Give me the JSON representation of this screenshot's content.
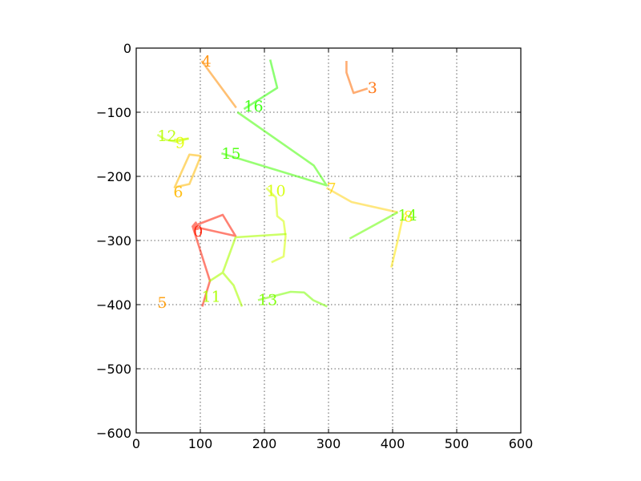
{
  "chart_data": {
    "type": "line",
    "title": "",
    "xlabel": "",
    "ylabel": "",
    "xlim": [
      0,
      600
    ],
    "ylim": [
      -600,
      0
    ],
    "xticks": [
      0,
      100,
      200,
      300,
      400,
      500,
      600
    ],
    "yticks": [
      0,
      -100,
      -200,
      -300,
      -400,
      -500,
      -600
    ],
    "xtick_labels": [
      "0",
      "100",
      "200",
      "300",
      "400",
      "500",
      "600"
    ],
    "ytick_labels": [
      "0",
      "−100",
      "−200",
      "−300",
      "−400",
      "−500",
      "−600"
    ],
    "grid": true,
    "series": [
      {
        "name": "0",
        "label": "0",
        "color": "#ff1a00",
        "alpha": 0.55,
        "label_xy": [
          89,
          -285
        ],
        "x": [
          88,
          96,
          93,
          88,
          135,
          155,
          88,
          115,
          103
        ],
        "y": [
          -282,
          -282,
          -272,
          -278,
          -260,
          -293,
          -278,
          -363,
          -403
        ]
      },
      {
        "name": "3",
        "label": "3",
        "color": "#ff6a00",
        "alpha": 0.55,
        "label_xy": [
          361,
          -61
        ],
        "x": [
          328,
          328,
          339,
          361
        ],
        "y": [
          -20,
          -38,
          -70,
          -63
        ]
      },
      {
        "name": "4",
        "label": "4",
        "color": "#ff8c00",
        "alpha": 0.55,
        "label_xy": [
          102,
          -20
        ],
        "x": [
          102,
          156
        ],
        "y": [
          -20,
          -93
        ]
      },
      {
        "name": "5",
        "label": "5",
        "color": "#ff9900",
        "alpha": 0.55,
        "label_xy": [
          33,
          -396
        ],
        "x": [],
        "y": []
      },
      {
        "name": "6",
        "label": "6",
        "color": "#ffb800",
        "alpha": 0.55,
        "label_xy": [
          58,
          -224
        ],
        "x": [
          101,
          83,
          60,
          83,
          101
        ],
        "y": [
          -168,
          -166,
          -217,
          -212,
          -168
        ]
      },
      {
        "name": "7",
        "label": "7",
        "color": "#ffd000",
        "alpha": 0.5,
        "label_xy": [
          297,
          -218
        ],
        "x": [
          297,
          336,
          408
        ],
        "y": [
          -218,
          -240,
          -256
        ]
      },
      {
        "name": "8",
        "label": "8",
        "color": "#ffe600",
        "alpha": 0.55,
        "label_xy": [
          417,
          -262
        ],
        "x": [
          417,
          408,
          398
        ],
        "y": [
          -258,
          -300,
          -342
        ]
      },
      {
        "name": "9",
        "label": "9",
        "color": "#e0ff00",
        "alpha": 0.55,
        "label_xy": [
          61,
          -147
        ],
        "x": [
          61,
          82
        ],
        "y": [
          -143,
          -141
        ]
      },
      {
        "name": "10",
        "label": "10",
        "color": "#d4ff00",
        "alpha": 0.55,
        "label_xy": [
          203,
          -222
        ],
        "x": [
          203,
          218,
          220,
          230,
          233,
          230,
          211
        ],
        "y": [
          -218,
          -233,
          -262,
          -270,
          -293,
          -325,
          -334
        ]
      },
      {
        "name": "11",
        "label": "11",
        "color": "#aaff00",
        "alpha": 0.6,
        "label_xy": [
          102,
          -387
        ],
        "x": [
          155,
          233,
          155,
          135,
          115,
          135,
          152,
          165
        ],
        "y": [
          -295,
          -290,
          -295,
          -350,
          -363,
          -350,
          -370,
          -403
        ]
      },
      {
        "name": "12",
        "label": "12",
        "color": "#b8ff00",
        "alpha": 0.55,
        "label_xy": [
          33,
          -136
        ],
        "x": [
          33,
          46,
          63,
          82
        ],
        "y": [
          -135,
          -143,
          -146,
          -141
        ]
      },
      {
        "name": "13",
        "label": "13",
        "color": "#7aff00",
        "alpha": 0.55,
        "label_xy": [
          190,
          -392
        ],
        "x": [
          190,
          241,
          262,
          276,
          298
        ],
        "y": [
          -393,
          -380,
          -381,
          -393,
          -403
        ]
      },
      {
        "name": "14",
        "label": "14",
        "color": "#66ff00",
        "alpha": 0.55,
        "label_xy": [
          408,
          -260
        ],
        "x": [
          408,
          333
        ],
        "y": [
          -256,
          -297
        ]
      },
      {
        "name": "15",
        "label": "15",
        "color": "#44ff00",
        "alpha": 0.55,
        "label_xy": [
          133,
          -164
        ],
        "x": [
          133,
          297,
          277,
          158
        ],
        "y": [
          -164,
          -214,
          -183,
          -100
        ]
      },
      {
        "name": "16",
        "label": "16",
        "color": "#2eff00",
        "alpha": 0.55,
        "label_xy": [
          168,
          -90
        ],
        "x": [
          168,
          220,
          209
        ],
        "y": [
          -95,
          -62,
          -18
        ]
      }
    ]
  }
}
